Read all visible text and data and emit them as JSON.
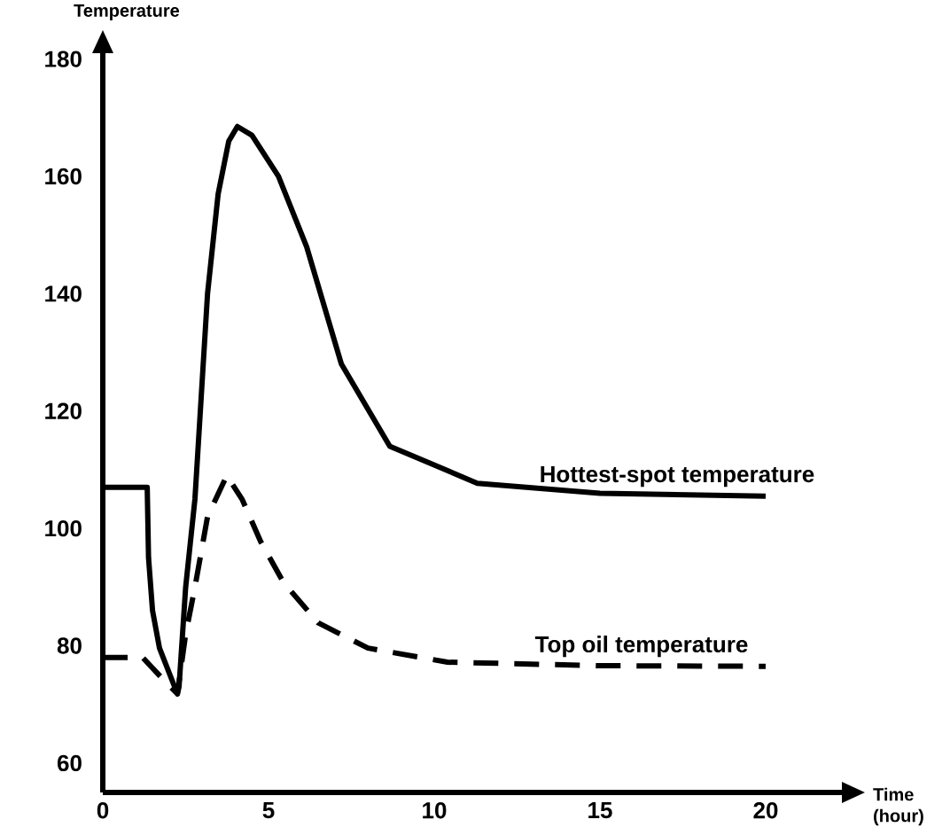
{
  "chart_data": {
    "type": "line",
    "ylabel": "Temperature",
    "xlabel": "Time (hour)",
    "xlim": [
      0,
      22.3
    ],
    "ylim": [
      55,
      181
    ],
    "xticks": [
      0,
      5,
      10,
      15,
      20
    ],
    "yticks": [
      60,
      80,
      100,
      120,
      140,
      160,
      180
    ],
    "series": [
      {
        "name": "Hottest-spot temperature",
        "color": "#000000",
        "line_style": "solid",
        "x": [
          0,
          1.34,
          1.38,
          1.5,
          1.71,
          2.25,
          2.3,
          2.5,
          2.78,
          3.16,
          3.48,
          3.8,
          4.06,
          4.5,
          5.3,
          6.15,
          7.2,
          8.66,
          11.3,
          15,
          20
        ],
        "values": [
          107,
          107,
          95,
          86,
          79.6,
          71.8,
          73,
          90,
          105,
          140,
          157,
          166,
          168.5,
          167,
          160,
          148,
          128,
          114,
          107.7,
          106,
          105.5
        ]
      },
      {
        "name": "Top oil temperature",
        "color": "#000000",
        "line_style": "dashed",
        "x": [
          0,
          1.2,
          1.7,
          2.25,
          2.5,
          2.78,
          3.16,
          3.74,
          4.2,
          4.76,
          5.45,
          6.5,
          8,
          10.4,
          15,
          20
        ],
        "values": [
          78,
          78,
          75,
          71.8,
          82,
          90,
          102,
          109,
          105,
          97.8,
          90.8,
          83.9,
          79.6,
          77.2,
          76.6,
          76.5
        ]
      }
    ]
  }
}
